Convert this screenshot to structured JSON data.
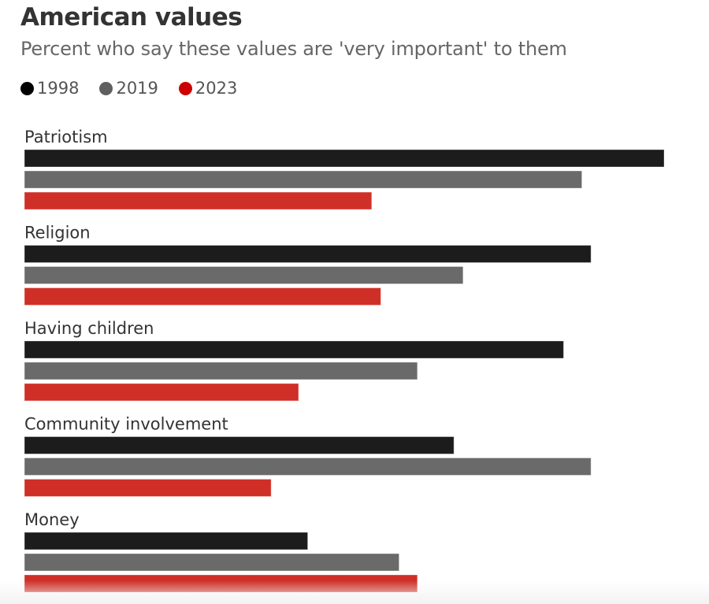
{
  "chart_data": {
    "type": "bar",
    "orientation": "horizontal",
    "title": "American values",
    "subtitle": "Percent who say these values are 'very important' to them",
    "xlabel": "",
    "ylabel": "",
    "xlim": [
      0,
      72
    ],
    "grid": false,
    "legend_position": "top-left",
    "categories": [
      "Patriotism",
      "Religion",
      "Having children",
      "Community involvement",
      "Money"
    ],
    "series": [
      {
        "name": "1998",
        "color": "#1c1c1c",
        "legend_color": "#000000",
        "values": [
          70,
          62,
          59,
          47,
          31
        ]
      },
      {
        "name": "2019",
        "color": "#6a6a6a",
        "legend_color": "#5f5f5f",
        "values": [
          61,
          48,
          43,
          62,
          41
        ]
      },
      {
        "name": "2023",
        "color": "#cf2f27",
        "legend_color": "#cc0000",
        "values": [
          38,
          39,
          30,
          27,
          43
        ]
      }
    ]
  }
}
